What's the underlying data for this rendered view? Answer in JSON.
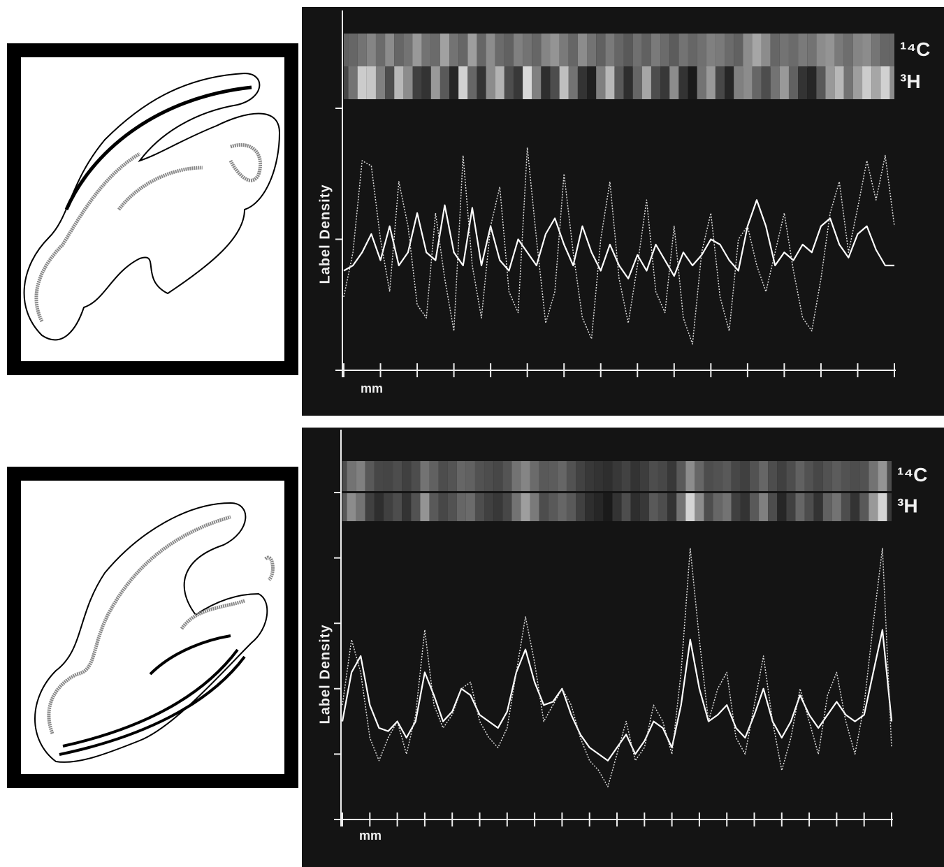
{
  "chart_data": [
    {
      "type": "line",
      "xlabel": "mm",
      "ylabel": "Label Density",
      "xlim": [
        0,
        60
      ],
      "xticks": [
        0,
        4,
        8,
        12,
        16,
        20,
        24,
        28,
        32,
        36,
        40,
        44,
        48,
        52,
        56,
        60
      ],
      "ylim": [
        0,
        100
      ],
      "yticks": [
        0,
        50,
        100
      ],
      "series": [
        {
          "name": "¹⁴C",
          "color": "#ffffff",
          "style": "solid",
          "values": [
            38,
            40,
            45,
            52,
            42,
            55,
            40,
            45,
            60,
            45,
            42,
            63,
            45,
            40,
            62,
            40,
            55,
            42,
            38,
            50,
            45,
            40,
            52,
            58,
            48,
            40,
            55,
            45,
            38,
            48,
            40,
            35,
            44,
            38,
            48,
            42,
            36,
            45,
            40,
            44,
            50,
            48,
            42,
            38,
            55,
            65,
            55,
            40,
            45,
            42,
            48,
            45,
            55,
            58,
            48,
            43,
            52,
            55,
            46,
            40,
            40
          ]
        },
        {
          "name": "³H",
          "color": "#dddddd",
          "style": "dotted",
          "values": [
            28,
            45,
            80,
            78,
            50,
            30,
            72,
            55,
            25,
            20,
            60,
            35,
            15,
            82,
            40,
            20,
            55,
            70,
            30,
            22,
            85,
            50,
            18,
            30,
            75,
            45,
            20,
            12,
            50,
            72,
            35,
            18,
            40,
            65,
            30,
            22,
            55,
            20,
            10,
            45,
            60,
            28,
            15,
            50,
            55,
            40,
            30,
            45,
            60,
            38,
            20,
            15,
            35,
            60,
            72,
            45,
            62,
            80,
            65,
            82,
            55
          ]
        }
      ]
    },
    {
      "type": "line",
      "xlabel": "mm",
      "ylabel": "Label Density",
      "xlim": [
        0,
        60
      ],
      "xticks": [
        0,
        3,
        6,
        9,
        12,
        15,
        18,
        21,
        24,
        27,
        30,
        33,
        36,
        39,
        42,
        45,
        48,
        51,
        54,
        57,
        60
      ],
      "ylim": [
        0,
        100
      ],
      "yticks": [
        0,
        20,
        40,
        60,
        80,
        100
      ],
      "series": [
        {
          "name": "¹⁴C",
          "color": "#ffffff",
          "style": "solid",
          "values": [
            30,
            45,
            50,
            35,
            28,
            27,
            30,
            25,
            30,
            45,
            38,
            30,
            33,
            40,
            38,
            32,
            30,
            28,
            33,
            45,
            52,
            42,
            35,
            36,
            40,
            32,
            26,
            22,
            20,
            18,
            22,
            26,
            20,
            24,
            30,
            28,
            22,
            35,
            55,
            40,
            30,
            32,
            35,
            28,
            25,
            32,
            40,
            30,
            25,
            30,
            38,
            32,
            28,
            32,
            36,
            32,
            30,
            32,
            45,
            58,
            30
          ]
        },
        {
          "name": "³H",
          "color": "#dddddd",
          "style": "dotted",
          "values": [
            35,
            55,
            45,
            25,
            18,
            25,
            30,
            20,
            32,
            58,
            35,
            28,
            32,
            40,
            42,
            30,
            25,
            22,
            28,
            45,
            62,
            48,
            30,
            35,
            40,
            35,
            25,
            18,
            15,
            10,
            20,
            30,
            18,
            22,
            35,
            30,
            20,
            45,
            83,
            55,
            30,
            40,
            45,
            25,
            20,
            35,
            50,
            30,
            15,
            25,
            40,
            30,
            20,
            38,
            45,
            30,
            20,
            35,
            60,
            83,
            22
          ]
        }
      ]
    }
  ]
}
